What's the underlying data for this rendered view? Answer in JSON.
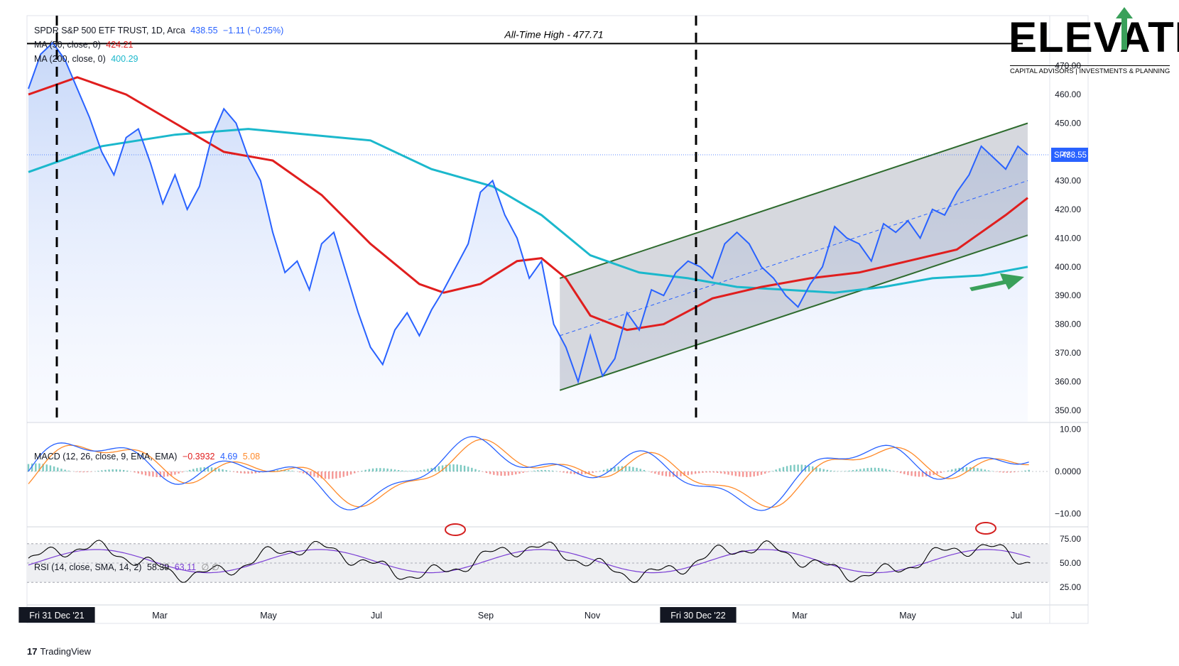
{
  "legend": {
    "symbol": "SPDR S&P 500 ETF TRUST, 1D, Arca",
    "price": "438.55",
    "change": "−1.11 (−0.25%)",
    "ma50_label": "MA (50, close, 0)",
    "ma50_value": "424.21",
    "ma200_label": "MA (200, close, 0)",
    "ma200_value": "400.29",
    "macd_label": "MACD (12, 26, close, 9, EMA, EMA)",
    "macd_hist": "−0.3932",
    "macd_line": "4.69",
    "macd_signal": "5.08",
    "rsi_label": "RSI (14, close, SMA, 14, 2)",
    "rsi_value": "58.39",
    "rsi_ma": "63.11",
    "rsi_extra": "∅ ∅"
  },
  "annotations": {
    "ath": "All-Time High - 477.71",
    "price_tag_symbol": "SPY",
    "price_tag_value": "438.55"
  },
  "logo": {
    "word": "ELEVATE",
    "tagline": "CAPITAL ADVISORS | INVESTMENTS & PLANNING"
  },
  "footer": {
    "brand": "TradingView"
  },
  "colors": {
    "price": "#2962ff",
    "ma50": "#e01e1e",
    "ma200": "#1bb8cc",
    "channel": "#2e6b2e",
    "macd": "#2962ff",
    "signal": "#ff8a2a",
    "rsi": "#000000",
    "rsi_ma": "#7b3fd4",
    "highlight": "#d42020",
    "arrow": "#3aa05a"
  },
  "chart_data": {
    "type": "line",
    "title": "SPDR S&P 500 ETF TRUST, 1D, Arca",
    "x_labels": [
      "Fri 31 Dec '21",
      "Mar",
      "May",
      "Jul",
      "Sep",
      "Nov",
      "Fri 30 Dec '22",
      "Mar",
      "May",
      "Jul"
    ],
    "price_axis": {
      "ylim": [
        345,
        485
      ],
      "ticks": [
        "350.00",
        "360.00",
        "370.00",
        "380.00",
        "390.00",
        "400.00",
        "410.00",
        "420.00",
        "430.00",
        "440.00",
        "450.00",
        "460.00",
        "470.00"
      ]
    },
    "macd_axis": {
      "ticks": [
        "10.00",
        "0.0000",
        "−10.00"
      ]
    },
    "rsi_axis": {
      "ticks": [
        "75.00",
        "50.00",
        "25.00"
      ]
    },
    "series": [
      {
        "name": "SPY",
        "values": [
          [
            0,
            462
          ],
          [
            10,
            474
          ],
          [
            20,
            478
          ],
          [
            30,
            472
          ],
          [
            40,
            462
          ],
          [
            50,
            452
          ],
          [
            60,
            440
          ],
          [
            70,
            432
          ],
          [
            80,
            445
          ],
          [
            90,
            448
          ],
          [
            100,
            436
          ],
          [
            110,
            422
          ],
          [
            120,
            432
          ],
          [
            130,
            420
          ],
          [
            140,
            428
          ],
          [
            150,
            445
          ],
          [
            160,
            455
          ],
          [
            170,
            450
          ],
          [
            180,
            438
          ],
          [
            190,
            430
          ],
          [
            200,
            412
          ],
          [
            210,
            398
          ],
          [
            220,
            402
          ],
          [
            230,
            392
          ],
          [
            240,
            408
          ],
          [
            250,
            412
          ],
          [
            260,
            398
          ],
          [
            270,
            384
          ],
          [
            280,
            372
          ],
          [
            290,
            366
          ],
          [
            300,
            378
          ],
          [
            310,
            384
          ],
          [
            320,
            376
          ],
          [
            330,
            385
          ],
          [
            340,
            392
          ],
          [
            350,
            400
          ],
          [
            360,
            408
          ],
          [
            370,
            426
          ],
          [
            380,
            430
          ],
          [
            390,
            418
          ],
          [
            400,
            410
          ],
          [
            410,
            396
          ],
          [
            420,
            402
          ],
          [
            430,
            380
          ],
          [
            440,
            372
          ],
          [
            450,
            360
          ],
          [
            460,
            376
          ],
          [
            470,
            362
          ],
          [
            480,
            368
          ],
          [
            490,
            384
          ],
          [
            500,
            378
          ],
          [
            510,
            392
          ],
          [
            520,
            390
          ],
          [
            530,
            398
          ],
          [
            540,
            402
          ],
          [
            550,
            400
          ],
          [
            560,
            396
          ],
          [
            570,
            408
          ],
          [
            580,
            412
          ],
          [
            590,
            408
          ],
          [
            600,
            400
          ],
          [
            610,
            396
          ],
          [
            620,
            390
          ],
          [
            630,
            386
          ],
          [
            640,
            394
          ],
          [
            650,
            400
          ],
          [
            660,
            414
          ],
          [
            670,
            410
          ],
          [
            680,
            408
          ],
          [
            690,
            402
          ],
          [
            700,
            415
          ],
          [
            710,
            412
          ],
          [
            720,
            416
          ],
          [
            730,
            410
          ],
          [
            740,
            420
          ],
          [
            750,
            418
          ],
          [
            760,
            426
          ],
          [
            770,
            432
          ],
          [
            780,
            442
          ],
          [
            790,
            438
          ],
          [
            800,
            434
          ],
          [
            810,
            442
          ],
          [
            818,
            439
          ]
        ]
      },
      {
        "name": "MA (50, close, 0)",
        "values": [
          [
            0,
            460
          ],
          [
            40,
            466
          ],
          [
            80,
            460
          ],
          [
            120,
            450
          ],
          [
            160,
            440
          ],
          [
            200,
            437
          ],
          [
            240,
            425
          ],
          [
            280,
            408
          ],
          [
            320,
            394
          ],
          [
            340,
            391
          ],
          [
            370,
            394
          ],
          [
            400,
            402
          ],
          [
            420,
            403
          ],
          [
            440,
            396
          ],
          [
            460,
            383
          ],
          [
            490,
            378
          ],
          [
            520,
            380
          ],
          [
            560,
            389
          ],
          [
            600,
            393
          ],
          [
            640,
            396
          ],
          [
            680,
            398
          ],
          [
            720,
            402
          ],
          [
            760,
            406
          ],
          [
            780,
            412
          ],
          [
            800,
            418
          ],
          [
            818,
            424
          ]
        ]
      },
      {
        "name": "MA (200, close, 0)",
        "values": [
          [
            0,
            433
          ],
          [
            60,
            442
          ],
          [
            120,
            446
          ],
          [
            180,
            448
          ],
          [
            230,
            446
          ],
          [
            280,
            444
          ],
          [
            330,
            434
          ],
          [
            380,
            428
          ],
          [
            420,
            418
          ],
          [
            460,
            404
          ],
          [
            500,
            398
          ],
          [
            540,
            396
          ],
          [
            580,
            393
          ],
          [
            620,
            392
          ],
          [
            660,
            391
          ],
          [
            700,
            393
          ],
          [
            740,
            396
          ],
          [
            780,
            397
          ],
          [
            818,
            400
          ]
        ]
      }
    ],
    "channel": {
      "upper": [
        [
          435,
          396
        ],
        [
          818,
          450
        ]
      ],
      "lower": [
        [
          435,
          357
        ],
        [
          818,
          411
        ]
      ],
      "mid": [
        [
          435,
          376
        ],
        [
          818,
          430
        ]
      ]
    },
    "ath_level": 477.71
  }
}
